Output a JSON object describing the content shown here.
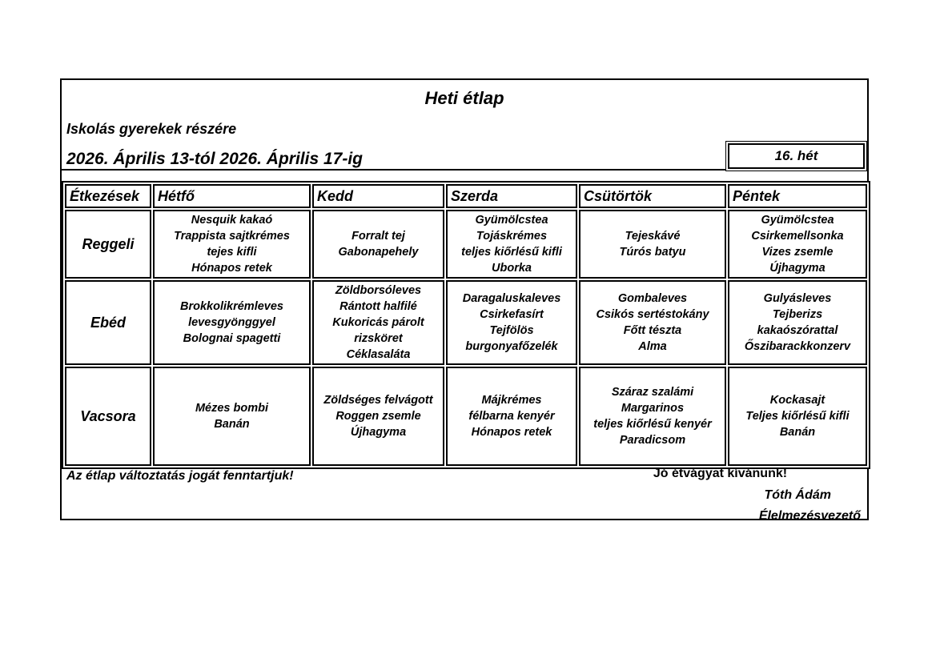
{
  "document": {
    "title": "Heti étlap",
    "subtitle": "Iskolás gyerekek részére",
    "date_range": "2026. Április 13-tól 2026. Április 17-ig",
    "week_badge": "16. hét"
  },
  "menu_table": {
    "header": [
      "Étkezések",
      "Hétfő",
      "Kedd",
      "Szerda",
      "Csütörtök",
      "Péntek"
    ],
    "rows": [
      {
        "label": "Reggeli",
        "cells": [
          [
            "Nesquik kakaó",
            "Trappista sajtkrémes",
            "tejes kifli",
            "Hónapos retek"
          ],
          [
            "Forralt tej",
            "Gabonapehely"
          ],
          [
            "Gyümölcstea",
            "Tojáskrémes",
            "teljes kiőrlésű kifli",
            "Uborka"
          ],
          [
            "Tejeskávé",
            "Túrós batyu"
          ],
          [
            "Gyümölcstea",
            "Csirkemellsonka",
            "Vizes zsemle",
            "Újhagyma"
          ]
        ]
      },
      {
        "label": "Ebéd",
        "cells": [
          [
            "Brokkolikrémleves",
            "levesgyönggyel",
            "Bolognai spagetti"
          ],
          [
            "Zöldborsóleves",
            "Rántott halfilé",
            "Kukoricás párolt",
            "rizsköret",
            "Céklasaláta"
          ],
          [
            "Daragaluskaleves",
            "Csirkefasírt",
            "Tejfölös",
            "burgonyafőzelék"
          ],
          [
            "Gombaleves",
            "Csikós sertéstokány",
            "Főtt tészta",
            "Alma"
          ],
          [
            "Gulyásleves",
            "Tejberizs",
            "kakaószórattal",
            "Őszibarackkonzerv"
          ]
        ]
      },
      {
        "label": "Vacsora",
        "cells": [
          [
            "Mézes bombi",
            "Banán"
          ],
          [
            "Zöldséges felvágott",
            "Roggen zsemle",
            "Újhagyma"
          ],
          [
            "Májkrémes",
            "félbarna kenyér",
            "Hónapos retek"
          ],
          [
            "Száraz szalámi",
            "Margarinos",
            "teljes kiőrlésű kenyér",
            "Paradicsom"
          ],
          [
            "Kockasajt",
            "Teljes kiőrlésű kifli",
            "Banán"
          ]
        ]
      }
    ]
  },
  "footer": {
    "disclaimer": "Az étlap változtatás jogát fenntartjuk!",
    "wish": "Jó étvágyat kívánunk!",
    "signature_name": "Tóth Ádám",
    "signature_role": "Élelmezésvezető"
  },
  "colors": {
    "ink": "#000000",
    "paper": "#ffffff"
  }
}
